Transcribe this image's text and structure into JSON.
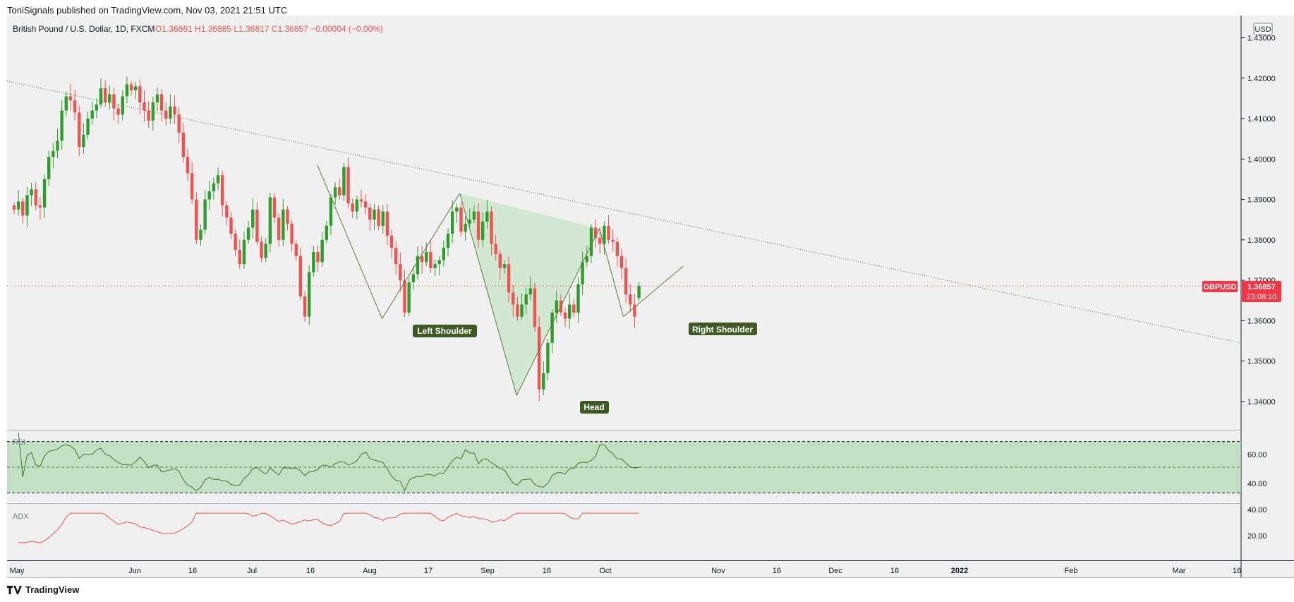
{
  "header": {
    "published": "ToniSignals published on TradingView.com, Nov 03, 2021 21:51 UTC"
  },
  "legend": {
    "symbol": "British Pound / U.S. Dollar, 1D, FXCM",
    "ohlc": "O1.36861  H1.36885  L1.36817  C1.36857  −0.00004 (−0.00%)"
  },
  "price_scale": {
    "currency": "USD",
    "ticks": [
      "1.43000",
      "1.42000",
      "1.41000",
      "1.40000",
      "1.39000",
      "1.38000",
      "1.37000",
      "1.36000",
      "1.35000",
      "1.34000"
    ]
  },
  "price_tag": {
    "symbol": "GBPUSD",
    "price": "1.36857",
    "countdown": "23:08:10"
  },
  "time_axis": [
    "May",
    "Jun",
    "16",
    "Jul",
    "16",
    "Aug",
    "17",
    "Sep",
    "16",
    "Oct",
    "Nov",
    "16",
    "Dec",
    "16",
    "2022",
    "Feb",
    "Mar",
    "16"
  ],
  "annotations": {
    "left": "Left Shoulder",
    "head": "Head",
    "right": "Right Shoulder"
  },
  "rsi": {
    "label": "RSI",
    "ticks": [
      "60.00",
      "40.00"
    ]
  },
  "adx": {
    "label": "ADX",
    "ticks": [
      "40.00",
      "20.00"
    ]
  },
  "footer": {
    "brand": "TradingView"
  },
  "colors": {
    "up": "#26a69a",
    "upGreen": "#2e9d2e",
    "down": "#ef5350",
    "pattern": "#4caf50",
    "price_line": "#f23645"
  },
  "chart_data": {
    "type": "candlestick",
    "symbol": "GBPUSD",
    "timeframe": "1D",
    "ylim": [
      1.333,
      1.4355
    ],
    "last_close": 1.36857,
    "candles_close": [
      1.3875,
      1.3895,
      1.386,
      1.391,
      1.3925,
      1.3885,
      1.388,
      1.395,
      1.4005,
      1.402,
      1.4045,
      1.412,
      1.4155,
      1.4145,
      1.4115,
      1.403,
      1.406,
      1.41,
      1.412,
      1.4135,
      1.4175,
      1.414,
      1.416,
      1.4125,
      1.411,
      1.4155,
      1.4185,
      1.417,
      1.418,
      1.414,
      1.412,
      1.4095,
      1.414,
      1.416,
      1.412,
      1.41,
      1.413,
      1.411,
      1.4065,
      1.4005,
      1.3965,
      1.39,
      1.38,
      1.3825,
      1.39,
      1.392,
      1.394,
      1.396,
      1.3885,
      1.3855,
      1.3815,
      1.3775,
      1.374,
      1.38,
      1.383,
      1.3875,
      1.3795,
      1.3755,
      1.379,
      1.3905,
      1.3855,
      1.38,
      1.3875,
      1.384,
      1.379,
      1.376,
      1.366,
      1.361,
      1.372,
      1.377,
      1.3745,
      1.38,
      1.3835,
      1.3905,
      1.393,
      1.391,
      1.398,
      1.389,
      1.387,
      1.39,
      1.3895,
      1.388,
      1.385,
      1.3875,
      1.3835,
      1.387,
      1.381,
      1.378,
      1.374,
      1.37,
      1.362,
      1.3695,
      1.3715,
      1.376,
      1.3745,
      1.377,
      1.373,
      1.374,
      1.375,
      1.378,
      1.3815,
      1.387,
      1.388,
      1.382,
      1.384,
      1.385,
      1.387,
      1.38,
      1.3845,
      1.387,
      1.379,
      1.3765,
      1.373,
      1.374,
      1.367,
      1.364,
      1.361,
      1.364,
      1.3665,
      1.368,
      1.3585,
      1.343,
      1.347,
      1.3545,
      1.362,
      1.365,
      1.362,
      1.3605,
      1.364,
      1.362,
      1.369,
      1.3745,
      1.376,
      1.383,
      1.3805,
      1.379,
      1.3835,
      1.38,
      1.3795,
      1.376,
      1.373,
      1.3665,
      1.364,
      1.361,
      1.3686
    ],
    "patterns": [
      {
        "name": "Left Shoulder",
        "price": 1.3605
      },
      {
        "name": "Head",
        "price": 1.3415
      },
      {
        "name": "Right Shoulder",
        "price": 1.361
      }
    ],
    "neckline_price_approx": [
      1.3985,
      1.392,
      1.383
    ],
    "indicators": {
      "RSI": {
        "levels": [
          70,
          50,
          30
        ]
      },
      "ADX": {}
    }
  }
}
